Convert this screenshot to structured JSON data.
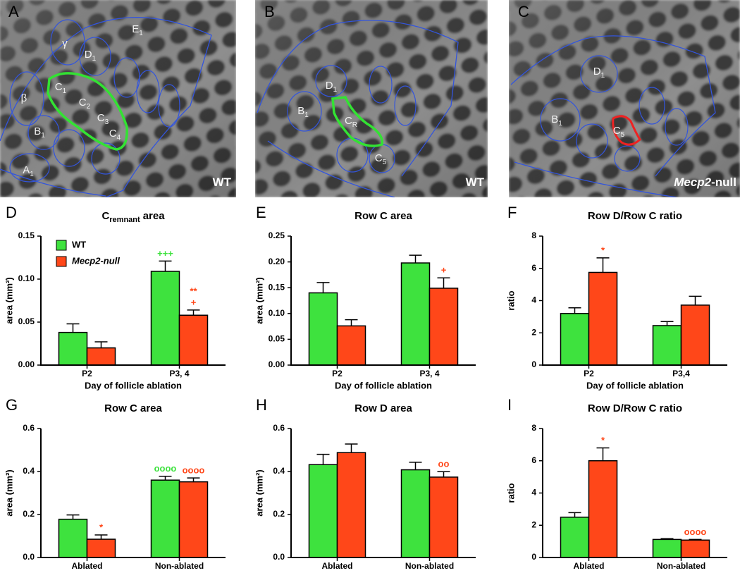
{
  "images": [
    {
      "panel": "A",
      "labels": [
        {
          "text": "E",
          "sub": "1"
        },
        {
          "text": "γ"
        },
        {
          "text": "D",
          "sub": "1"
        },
        {
          "text": "C",
          "sub": "1"
        },
        {
          "text": "C",
          "sub": "2"
        },
        {
          "text": "C",
          "sub": "3"
        },
        {
          "text": "C",
          "sub": "4"
        },
        {
          "text": "β"
        },
        {
          "text": "B",
          "sub": "1"
        },
        {
          "text": "A",
          "sub": "1"
        }
      ],
      "genotype": {
        "text": "WT"
      }
    },
    {
      "panel": "B",
      "labels": [
        {
          "text": "D",
          "sub": "1"
        },
        {
          "text": "B",
          "sub": "1"
        },
        {
          "text": "C",
          "sub": "R"
        },
        {
          "text": "C",
          "sub": "5"
        }
      ],
      "genotype": {
        "text": "WT"
      }
    },
    {
      "panel": "C",
      "labels": [
        {
          "text": "D",
          "sub": "1"
        },
        {
          "text": "B",
          "sub": "1"
        },
        {
          "text": "C",
          "sub": "5"
        }
      ],
      "genotype": {
        "text": "Mecp2",
        "suffix": "-null"
      }
    }
  ],
  "chart_data": [
    {
      "type": "bar",
      "panel": "D",
      "title": "C",
      "title_subscript": "remnant",
      "title_rest": "area",
      "y_label": "area (mm²)",
      "x_label": "Day of follicle ablation",
      "categories": [
        "P2",
        "P3, 4"
      ],
      "legend": true,
      "series": [
        {
          "name": "WT",
          "color": "#3ee23e",
          "values": [
            0.038,
            0.109
          ],
          "errors": [
            0.01,
            0.012
          ],
          "annotations": [
            [],
            [
              "+++"
            ]
          ]
        },
        {
          "name": "Mecp2-null",
          "color": "#ff4719",
          "values": [
            0.02,
            0.058
          ],
          "errors": [
            0.007,
            0.006
          ],
          "annotations": [
            [],
            [
              "**",
              "+"
            ]
          ]
        }
      ],
      "ylim": [
        0,
        0.15
      ],
      "yticks": [
        {
          "value": 0,
          "label": "0.00"
        },
        0.05,
        {
          "value": 0.1,
          "label": "0.10"
        },
        0.15
      ]
    },
    {
      "type": "bar",
      "panel": "E",
      "title": "Row C area",
      "y_label": "area (mm²)",
      "x_label": "Day of follicle ablation",
      "categories": [
        "P2",
        "P3, 4"
      ],
      "series": [
        {
          "color": "#3ee23e",
          "values": [
            0.14,
            0.198
          ],
          "errors": [
            0.02,
            0.015
          ],
          "annotations": [
            [],
            []
          ]
        },
        {
          "color": "#ff4719",
          "values": [
            0.076,
            0.149
          ],
          "errors": [
            0.012,
            0.02
          ],
          "annotations": [
            [],
            [
              "+"
            ]
          ]
        }
      ],
      "ylim": [
        0,
        0.25
      ],
      "yticks": [
        {
          "value": 0,
          "label": "0.00"
        },
        0.05,
        {
          "value": 0.1,
          "label": "0.10"
        },
        0.15,
        {
          "value": 0.2,
          "label": "0.20"
        },
        0.25
      ]
    },
    {
      "type": "bar",
      "panel": "F",
      "title": "Row D/Row C ratio",
      "y_label": "ratio",
      "x_label": "Day of follicle ablation",
      "categories": [
        "P2",
        "P3,4"
      ],
      "series": [
        {
          "color": "#3ee23e",
          "values": [
            3.2,
            2.45
          ],
          "errors": [
            0.35,
            0.25
          ],
          "annotations": [
            [],
            []
          ]
        },
        {
          "color": "#ff4719",
          "values": [
            5.75,
            3.72
          ],
          "errors": [
            0.9,
            0.55
          ],
          "annotations": [
            [
              "*"
            ],
            []
          ]
        }
      ],
      "ylim": [
        0,
        8
      ],
      "yticks": [
        0,
        2,
        4,
        6,
        8
      ]
    },
    {
      "type": "bar",
      "panel": "G",
      "title": "Row C area",
      "y_label": "area (mm²)",
      "categories": [
        "Ablated",
        "Non-ablated"
      ],
      "series": [
        {
          "color": "#3ee23e",
          "values": [
            0.178,
            0.36
          ],
          "errors": [
            0.02,
            0.018
          ],
          "annotations": [
            [],
            [
              "oooo"
            ]
          ]
        },
        {
          "color": "#ff4719",
          "values": [
            0.085,
            0.352
          ],
          "errors": [
            0.02,
            0.018
          ],
          "annotations": [
            [
              "*"
            ],
            [
              "oooo"
            ]
          ]
        }
      ],
      "ylim": [
        0,
        0.6
      ],
      "yticks": [
        {
          "value": 0,
          "label": "0.0"
        },
        0.2,
        0.4,
        0.6
      ]
    },
    {
      "type": "bar",
      "panel": "H",
      "title": "Row D area",
      "y_label": "area (mm²)",
      "categories": [
        "Ablated",
        "Non-ablated"
      ],
      "series": [
        {
          "color": "#3ee23e",
          "values": [
            0.432,
            0.408
          ],
          "errors": [
            0.048,
            0.035
          ],
          "annotations": [
            [],
            []
          ]
        },
        {
          "color": "#ff4719",
          "values": [
            0.488,
            0.374
          ],
          "errors": [
            0.04,
            0.025
          ],
          "annotations": [
            [],
            [
              "oo"
            ]
          ]
        }
      ],
      "ylim": [
        0,
        0.6
      ],
      "yticks": [
        {
          "value": 0,
          "label": "0.0"
        },
        0.2,
        0.4,
        0.6
      ]
    },
    {
      "type": "bar",
      "panel": "I",
      "title": "Row D/Row C ratio",
      "y_label": "ratio",
      "categories": [
        "Ablated",
        "Non-ablated"
      ],
      "series": [
        {
          "color": "#3ee23e",
          "values": [
            2.5,
            1.12
          ],
          "errors": [
            0.28,
            0.05
          ],
          "annotations": [
            [],
            []
          ]
        },
        {
          "color": "#ff4719",
          "values": [
            6.0,
            1.08
          ],
          "errors": [
            0.8,
            0.04
          ],
          "annotations": [
            [
              "*"
            ],
            [
              "oooo"
            ]
          ]
        }
      ],
      "ylim": [
        0,
        8
      ],
      "yticks": [
        0,
        2,
        4,
        6,
        8
      ]
    }
  ]
}
